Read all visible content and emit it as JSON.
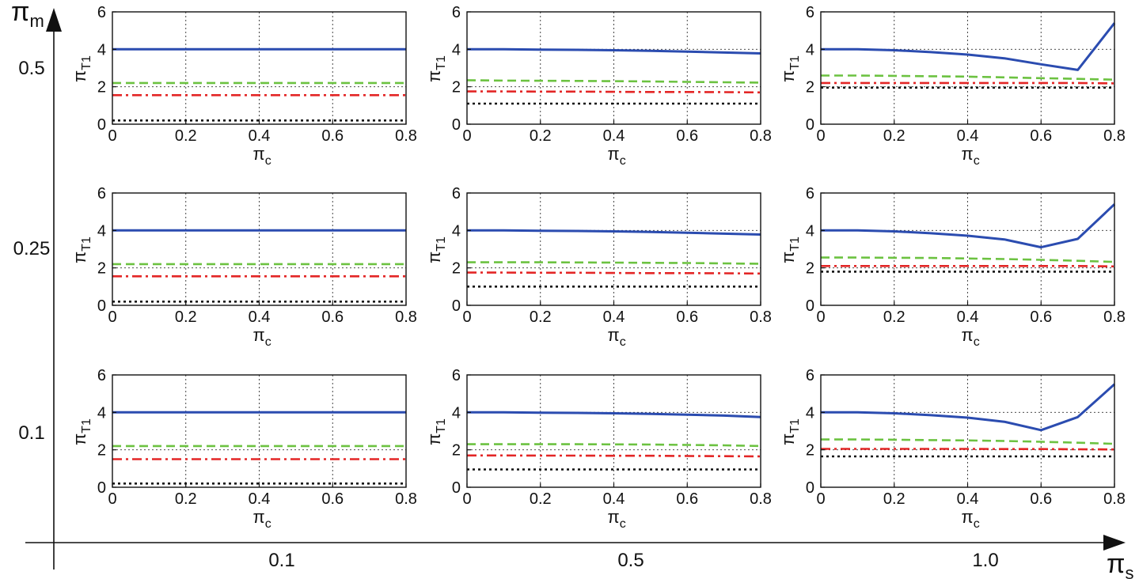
{
  "figure": {
    "y_axis_label": "π",
    "y_axis_sub": "m",
    "x_axis_label": "π",
    "x_axis_sub": "s",
    "row_labels": [
      "0.5",
      "0.25",
      "0.1"
    ],
    "col_labels": [
      "0.1",
      "0.5",
      "1.0"
    ]
  },
  "colors": {
    "series_blue": "#2b4cb0",
    "series_green": "#6cc241",
    "series_red": "#e32626",
    "series_black": "#111111",
    "grid": "#333333"
  },
  "chart_data": [
    {
      "type": "line",
      "pi_m": "0.5",
      "pi_s": "0.1",
      "xlabel": "π",
      "xlabel_sub": "c",
      "ylabel": "π",
      "ylabel_sub": "T1",
      "xlim": [
        0,
        0.8
      ],
      "ylim": [
        0,
        6
      ],
      "xticks": [
        0,
        0.2,
        0.4,
        0.6,
        0.8
      ],
      "yticks": [
        0,
        2,
        4,
        6
      ],
      "grid": true,
      "x": [
        0,
        0.1,
        0.2,
        0.3,
        0.4,
        0.5,
        0.6,
        0.7,
        0.8
      ],
      "series": [
        {
          "style": "solid",
          "color": "#2b4cb0",
          "values": [
            4.0,
            4.0,
            4.0,
            4.0,
            4.0,
            4.0,
            4.0,
            4.0,
            4.0
          ]
        },
        {
          "style": "dashed",
          "color": "#6cc241",
          "values": [
            2.2,
            2.2,
            2.2,
            2.2,
            2.2,
            2.2,
            2.2,
            2.2,
            2.2
          ]
        },
        {
          "style": "dashdot",
          "color": "#e32626",
          "values": [
            1.55,
            1.55,
            1.55,
            1.55,
            1.55,
            1.55,
            1.55,
            1.55,
            1.55
          ]
        },
        {
          "style": "dotted",
          "color": "#111111",
          "values": [
            0.2,
            0.2,
            0.2,
            0.2,
            0.2,
            0.2,
            0.2,
            0.2,
            0.2
          ]
        }
      ]
    },
    {
      "type": "line",
      "pi_m": "0.5",
      "pi_s": "0.5",
      "xlabel": "π",
      "xlabel_sub": "c",
      "ylabel": "π",
      "ylabel_sub": "T1",
      "xlim": [
        0,
        0.8
      ],
      "ylim": [
        0,
        6
      ],
      "xticks": [
        0,
        0.2,
        0.4,
        0.6,
        0.8
      ],
      "yticks": [
        0,
        2,
        4,
        6
      ],
      "grid": true,
      "x": [
        0,
        0.1,
        0.2,
        0.3,
        0.4,
        0.5,
        0.6,
        0.7,
        0.8
      ],
      "series": [
        {
          "style": "solid",
          "color": "#2b4cb0",
          "values": [
            4.0,
            4.0,
            3.98,
            3.97,
            3.95,
            3.92,
            3.88,
            3.83,
            3.78
          ]
        },
        {
          "style": "dashed",
          "color": "#6cc241",
          "values": [
            2.35,
            2.33,
            2.32,
            2.31,
            2.3,
            2.28,
            2.26,
            2.24,
            2.22
          ]
        },
        {
          "style": "dashdot",
          "color": "#e32626",
          "values": [
            1.75,
            1.75,
            1.74,
            1.74,
            1.73,
            1.72,
            1.72,
            1.71,
            1.7
          ]
        },
        {
          "style": "dotted",
          "color": "#111111",
          "values": [
            1.1,
            1.1,
            1.1,
            1.1,
            1.1,
            1.1,
            1.1,
            1.1,
            1.1
          ]
        }
      ]
    },
    {
      "type": "line",
      "pi_m": "0.5",
      "pi_s": "1.0",
      "xlabel": "π",
      "xlabel_sub": "c",
      "ylabel": "π",
      "ylabel_sub": "T1",
      "xlim": [
        0,
        0.8
      ],
      "ylim": [
        0,
        6
      ],
      "xticks": [
        0,
        0.2,
        0.4,
        0.6,
        0.8
      ],
      "yticks": [
        0,
        2,
        4,
        6
      ],
      "grid": true,
      "x": [
        0,
        0.1,
        0.2,
        0.3,
        0.4,
        0.5,
        0.6,
        0.7,
        0.8
      ],
      "series": [
        {
          "style": "solid",
          "color": "#2b4cb0",
          "values": [
            4.0,
            4.0,
            3.95,
            3.85,
            3.72,
            3.52,
            3.2,
            2.9,
            5.4
          ]
        },
        {
          "style": "dashed",
          "color": "#6cc241",
          "values": [
            2.6,
            2.6,
            2.58,
            2.56,
            2.54,
            2.5,
            2.46,
            2.42,
            2.38
          ]
        },
        {
          "style": "dashdot",
          "color": "#e32626",
          "values": [
            2.2,
            2.2,
            2.2,
            2.2,
            2.2,
            2.2,
            2.2,
            2.2,
            2.18
          ]
        },
        {
          "style": "dotted",
          "color": "#111111",
          "values": [
            1.95,
            1.95,
            1.95,
            1.95,
            1.95,
            1.95,
            1.95,
            1.95,
            1.95
          ]
        }
      ]
    },
    {
      "type": "line",
      "pi_m": "0.25",
      "pi_s": "0.1",
      "xlabel": "π",
      "xlabel_sub": "c",
      "ylabel": "π",
      "ylabel_sub": "T1",
      "xlim": [
        0,
        0.8
      ],
      "ylim": [
        0,
        6
      ],
      "xticks": [
        0,
        0.2,
        0.4,
        0.6,
        0.8
      ],
      "yticks": [
        0,
        2,
        4,
        6
      ],
      "grid": true,
      "x": [
        0,
        0.1,
        0.2,
        0.3,
        0.4,
        0.5,
        0.6,
        0.7,
        0.8
      ],
      "series": [
        {
          "style": "solid",
          "color": "#2b4cb0",
          "values": [
            4.0,
            4.0,
            4.0,
            4.0,
            4.0,
            4.0,
            4.0,
            4.0,
            4.0
          ]
        },
        {
          "style": "dashed",
          "color": "#6cc241",
          "values": [
            2.2,
            2.2,
            2.2,
            2.2,
            2.2,
            2.2,
            2.2,
            2.2,
            2.2
          ]
        },
        {
          "style": "dashdot",
          "color": "#e32626",
          "values": [
            1.55,
            1.55,
            1.55,
            1.55,
            1.55,
            1.55,
            1.55,
            1.55,
            1.55
          ]
        },
        {
          "style": "dotted",
          "color": "#111111",
          "values": [
            0.2,
            0.2,
            0.2,
            0.2,
            0.2,
            0.2,
            0.2,
            0.2,
            0.2
          ]
        }
      ]
    },
    {
      "type": "line",
      "pi_m": "0.25",
      "pi_s": "0.5",
      "xlabel": "π",
      "xlabel_sub": "c",
      "ylabel": "π",
      "ylabel_sub": "T1",
      "xlim": [
        0,
        0.8
      ],
      "ylim": [
        0,
        6
      ],
      "xticks": [
        0,
        0.2,
        0.4,
        0.6,
        0.8
      ],
      "yticks": [
        0,
        2,
        4,
        6
      ],
      "grid": true,
      "x": [
        0,
        0.1,
        0.2,
        0.3,
        0.4,
        0.5,
        0.6,
        0.7,
        0.8
      ],
      "series": [
        {
          "style": "solid",
          "color": "#2b4cb0",
          "values": [
            4.0,
            4.0,
            3.98,
            3.97,
            3.95,
            3.92,
            3.88,
            3.83,
            3.78
          ]
        },
        {
          "style": "dashed",
          "color": "#6cc241",
          "values": [
            2.3,
            2.3,
            2.3,
            2.29,
            2.28,
            2.27,
            2.26,
            2.24,
            2.22
          ]
        },
        {
          "style": "dashdot",
          "color": "#e32626",
          "values": [
            1.75,
            1.75,
            1.74,
            1.74,
            1.73,
            1.72,
            1.72,
            1.71,
            1.7
          ]
        },
        {
          "style": "dotted",
          "color": "#111111",
          "values": [
            1.0,
            1.0,
            1.0,
            1.0,
            1.0,
            1.0,
            1.0,
            1.0,
            1.0
          ]
        }
      ]
    },
    {
      "type": "line",
      "pi_m": "0.25",
      "pi_s": "1.0",
      "xlabel": "π",
      "xlabel_sub": "c",
      "ylabel": "π",
      "ylabel_sub": "T1",
      "xlim": [
        0,
        0.8
      ],
      "ylim": [
        0,
        6
      ],
      "xticks": [
        0,
        0.2,
        0.4,
        0.6,
        0.8
      ],
      "yticks": [
        0,
        2,
        4,
        6
      ],
      "grid": true,
      "x": [
        0,
        0.1,
        0.2,
        0.3,
        0.4,
        0.5,
        0.6,
        0.7,
        0.8
      ],
      "series": [
        {
          "style": "solid",
          "color": "#2b4cb0",
          "values": [
            4.0,
            4.0,
            3.95,
            3.85,
            3.72,
            3.52,
            3.1,
            3.55,
            5.4
          ]
        },
        {
          "style": "dashed",
          "color": "#6cc241",
          "values": [
            2.55,
            2.55,
            2.54,
            2.53,
            2.5,
            2.47,
            2.43,
            2.38,
            2.32
          ]
        },
        {
          "style": "dashdot",
          "color": "#e32626",
          "values": [
            2.1,
            2.1,
            2.1,
            2.1,
            2.1,
            2.1,
            2.1,
            2.1,
            2.08
          ]
        },
        {
          "style": "dotted",
          "color": "#111111",
          "values": [
            1.8,
            1.8,
            1.8,
            1.8,
            1.8,
            1.8,
            1.8,
            1.8,
            1.8
          ]
        }
      ]
    },
    {
      "type": "line",
      "pi_m": "0.1",
      "pi_s": "0.1",
      "xlabel": "π",
      "xlabel_sub": "c",
      "ylabel": "π",
      "ylabel_sub": "T1",
      "xlim": [
        0,
        0.8
      ],
      "ylim": [
        0,
        6
      ],
      "xticks": [
        0,
        0.2,
        0.4,
        0.6,
        0.8
      ],
      "yticks": [
        0,
        2,
        4,
        6
      ],
      "grid": true,
      "x": [
        0,
        0.1,
        0.2,
        0.3,
        0.4,
        0.5,
        0.6,
        0.7,
        0.8
      ],
      "series": [
        {
          "style": "solid",
          "color": "#2b4cb0",
          "values": [
            4.0,
            4.0,
            4.0,
            4.0,
            4.0,
            4.0,
            4.0,
            4.0,
            4.0
          ]
        },
        {
          "style": "dashed",
          "color": "#6cc241",
          "values": [
            2.2,
            2.2,
            2.2,
            2.2,
            2.2,
            2.2,
            2.2,
            2.2,
            2.2
          ]
        },
        {
          "style": "dashdot",
          "color": "#e32626",
          "values": [
            1.5,
            1.5,
            1.5,
            1.5,
            1.5,
            1.5,
            1.5,
            1.5,
            1.5
          ]
        },
        {
          "style": "dotted",
          "color": "#111111",
          "values": [
            0.2,
            0.2,
            0.2,
            0.2,
            0.2,
            0.2,
            0.2,
            0.2,
            0.2
          ]
        }
      ]
    },
    {
      "type": "line",
      "pi_m": "0.1",
      "pi_s": "0.5",
      "xlabel": "π",
      "xlabel_sub": "c",
      "ylabel": "π",
      "ylabel_sub": "T1",
      "xlim": [
        0,
        0.8
      ],
      "ylim": [
        0,
        6
      ],
      "xticks": [
        0,
        0.2,
        0.4,
        0.6,
        0.8
      ],
      "yticks": [
        0,
        2,
        4,
        6
      ],
      "grid": true,
      "x": [
        0,
        0.1,
        0.2,
        0.3,
        0.4,
        0.5,
        0.6,
        0.7,
        0.8
      ],
      "series": [
        {
          "style": "solid",
          "color": "#2b4cb0",
          "values": [
            4.0,
            4.0,
            3.98,
            3.97,
            3.95,
            3.92,
            3.88,
            3.83,
            3.75
          ]
        },
        {
          "style": "dashed",
          "color": "#6cc241",
          "values": [
            2.3,
            2.3,
            2.3,
            2.3,
            2.29,
            2.28,
            2.26,
            2.24,
            2.2
          ]
        },
        {
          "style": "dashdot",
          "color": "#e32626",
          "values": [
            1.7,
            1.7,
            1.69,
            1.69,
            1.68,
            1.68,
            1.67,
            1.66,
            1.65
          ]
        },
        {
          "style": "dotted",
          "color": "#111111",
          "values": [
            0.95,
            0.95,
            0.95,
            0.95,
            0.95,
            0.95,
            0.95,
            0.95,
            0.95
          ]
        }
      ]
    },
    {
      "type": "line",
      "pi_m": "0.1",
      "pi_s": "1.0",
      "xlabel": "π",
      "xlabel_sub": "c",
      "ylabel": "π",
      "ylabel_sub": "T1",
      "xlim": [
        0,
        0.8
      ],
      "ylim": [
        0,
        6
      ],
      "xticks": [
        0,
        0.2,
        0.4,
        0.6,
        0.8
      ],
      "yticks": [
        0,
        2,
        4,
        6
      ],
      "grid": true,
      "x": [
        0,
        0.1,
        0.2,
        0.3,
        0.4,
        0.5,
        0.6,
        0.7,
        0.8
      ],
      "series": [
        {
          "style": "solid",
          "color": "#2b4cb0",
          "values": [
            4.0,
            4.0,
            3.95,
            3.85,
            3.72,
            3.5,
            3.05,
            3.75,
            5.5
          ]
        },
        {
          "style": "dashed",
          "color": "#6cc241",
          "values": [
            2.55,
            2.55,
            2.54,
            2.52,
            2.5,
            2.47,
            2.43,
            2.38,
            2.32
          ]
        },
        {
          "style": "dashdot",
          "color": "#e32626",
          "values": [
            2.05,
            2.05,
            2.05,
            2.05,
            2.05,
            2.04,
            2.04,
            2.03,
            2.02
          ]
        },
        {
          "style": "dotted",
          "color": "#111111",
          "values": [
            1.65,
            1.65,
            1.65,
            1.65,
            1.65,
            1.65,
            1.65,
            1.65,
            1.65
          ]
        }
      ]
    }
  ]
}
